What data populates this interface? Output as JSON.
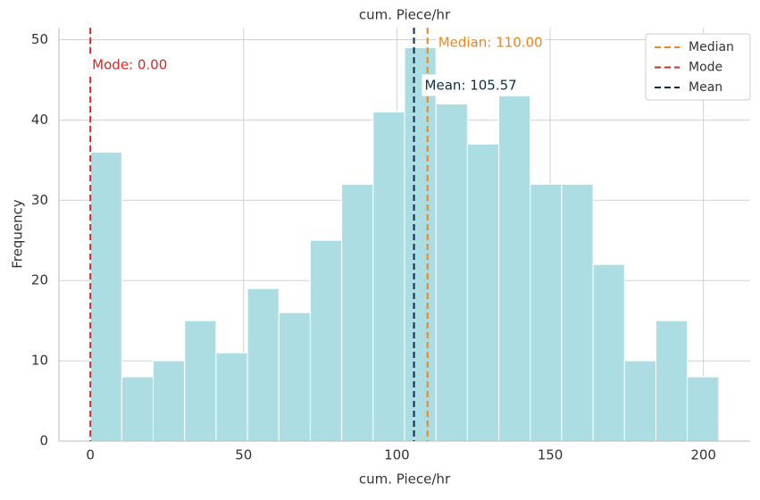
{
  "chart_data": {
    "type": "histogram",
    "title": "cum. Piece/hr",
    "x_label": "cum. Piece/hr",
    "y_label": "Frequency",
    "bins": [
      0,
      10.25,
      20.5,
      30.75,
      41,
      51.25,
      61.5,
      71.75,
      82,
      92.25,
      102.5,
      112.75,
      123,
      133.25,
      143.5,
      153.75,
      164,
      174.25,
      184.5,
      194.75,
      205
    ],
    "values": [
      36,
      8,
      10,
      15,
      11,
      19,
      16,
      25,
      32,
      41,
      49,
      42,
      37,
      43,
      32,
      32,
      22,
      10,
      15,
      8
    ],
    "color": "#abdde3",
    "xlim": [
      -10.25,
      215.25
    ],
    "xticks": [
      0,
      50,
      100,
      150,
      200
    ],
    "ylim": [
      0,
      51.5
    ],
    "yticks": [
      0,
      10,
      20,
      30,
      40,
      50
    ],
    "grid": true,
    "legend": "upper right",
    "lines": [
      {
        "name": "Median",
        "value": 110,
        "label": "Median: 110.00",
        "color": "#f0861a"
      },
      {
        "name": "Mode",
        "value": 0,
        "label": "Mode: 0.00",
        "color": "#d62728"
      },
      {
        "name": "Mean",
        "value": 105.57,
        "label": "Mean: 105.57",
        "color": "#0b2e4a"
      }
    ]
  }
}
